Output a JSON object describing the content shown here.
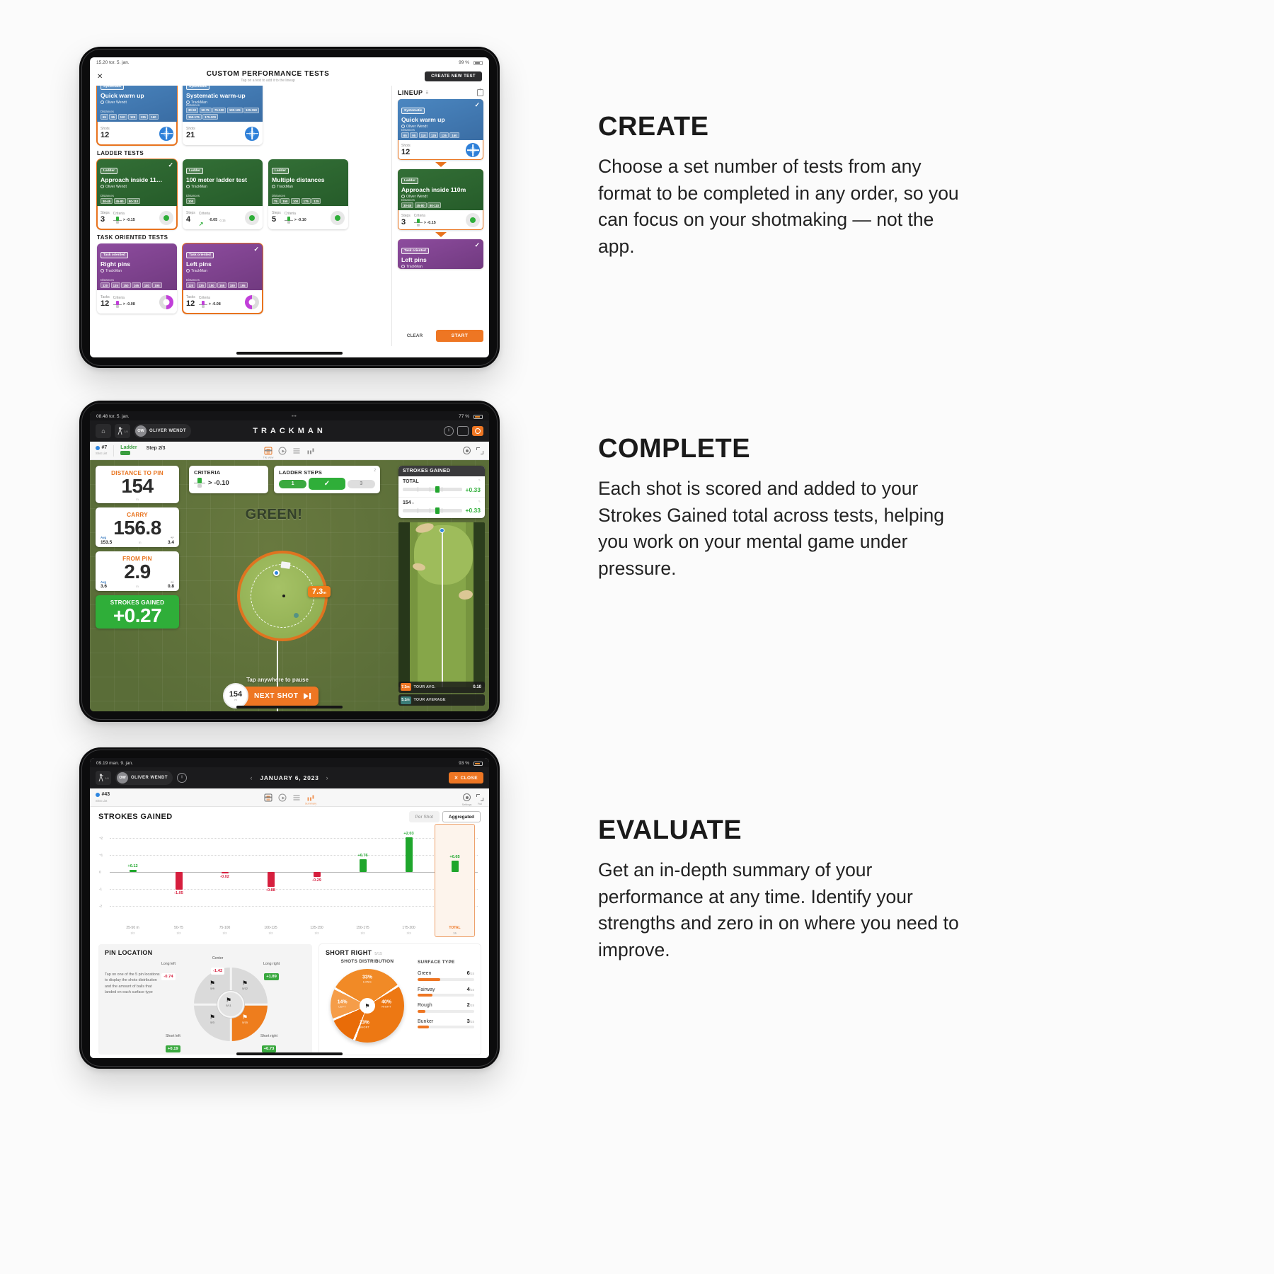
{
  "copy": {
    "create": {
      "title": "CREATE",
      "body": "Choose a set number of tests from any format to be completed in any order, so you can focus on your shotmaking — not the app."
    },
    "complete": {
      "title": "COMPLETE",
      "body": "Each shot is scored and added to your Strokes Gained total across tests, helping you work on your mental game under pressure."
    },
    "evaluate": {
      "title": "EVALUATE",
      "body": "Get an in-depth summary of your performance at any time. Identify your strengths and zero in on where you need to improve."
    }
  },
  "ipad_create": {
    "status": {
      "time": "15.20  tor. 5. jan.",
      "battery": "99 %"
    },
    "header": {
      "close": "✕",
      "title": "CUSTOM PERFORMANCE TESTS",
      "subtitle": "Tap on a test to add it to the lineup",
      "new_test": "CREATE NEW TEST"
    },
    "sections": {
      "ladder": "LADDER TESTS",
      "task": "TASK ORIENTED TESTS"
    },
    "labels": {
      "distances": "Distances",
      "shots": "Shots",
      "steps": "Steps",
      "tasks": "Tasks",
      "criteria": "Criteria"
    },
    "cards": [
      {
        "row": 0,
        "color": "blue",
        "icon": "bluetarget",
        "selected": true,
        "check": false,
        "badge": "Systematic",
        "title": "Quick warm up",
        "author": "Oliver Wendt",
        "distances": [
          "65",
          "95",
          "110",
          "125",
          "135",
          "160"
        ],
        "stat_label": "Shots",
        "stat_value": "12"
      },
      {
        "row": 0,
        "color": "blue",
        "icon": "bluetarget",
        "selected": false,
        "check": false,
        "badge": "Systematic",
        "title": "Systematic warm-up",
        "author": "TrackMan",
        "distances": [
          "30-50",
          "50-75",
          "75-100",
          "100-125",
          "125-150",
          "150-175",
          "175-200"
        ],
        "stat_label": "Shots",
        "stat_value": "21"
      },
      {
        "row": 1,
        "color": "green",
        "icon": "greendot",
        "selected": true,
        "check": true,
        "badge": "Ladder",
        "title": "Approach inside 11…",
        "author": "Oliver Wendt",
        "distances": [
          "30-45",
          "45-80",
          "80-110"
        ],
        "stat_label": "Steps",
        "stat_value": "3",
        "criteria": "> -0.15",
        "crit_type": "slider"
      },
      {
        "row": 1,
        "color": "green",
        "icon": "greendot",
        "selected": false,
        "check": false,
        "badge": "Ladder",
        "title": "100 meter ladder test",
        "author": "TrackMan",
        "distances": [
          "100"
        ],
        "stat_label": "Steps",
        "stat_value": "4",
        "criteria": "-0.05",
        "crit_sub": "-0.15",
        "crit_type": "trend"
      },
      {
        "row": 1,
        "color": "green",
        "icon": "greendot",
        "selected": false,
        "check": false,
        "badge": "Ladder",
        "title": "Multiple distances",
        "author": "TrackMan",
        "distances": [
          "75",
          "150",
          "100",
          "175",
          "125"
        ],
        "stat_label": "Steps",
        "stat_value": "5",
        "criteria": "> -0.10",
        "crit_type": "slider"
      },
      {
        "row": 2,
        "color": "purple",
        "icon": "donutR",
        "selected": false,
        "check": false,
        "badge": "Task oriented",
        "title": "Right pins",
        "author": "TrackMan",
        "distances": [
          "120",
          "135",
          "150",
          "165",
          "180",
          "195"
        ],
        "stat_label": "Tasks",
        "stat_value": "12",
        "criteria": "> -0.08",
        "crit_type": "slider-mag"
      },
      {
        "row": 2,
        "color": "purple",
        "icon": "donutL",
        "selected": true,
        "check": true,
        "badge": "Task oriented",
        "title": "Left pins",
        "author": "TrackMan",
        "distances": [
          "120",
          "135",
          "150",
          "165",
          "180",
          "195"
        ],
        "stat_label": "Tasks",
        "stat_value": "12",
        "criteria": "> -0.08",
        "crit_type": "slider-mag"
      }
    ],
    "lineup": {
      "title": "LINEUP",
      "clear": "CLEAR",
      "start": "START",
      "cards": [
        {
          "color": "blue",
          "icon": "bluetarget",
          "check": true,
          "badge": "Systematic",
          "title": "Quick warm up",
          "author": "Oliver Wendt",
          "distances": [
            "65",
            "95",
            "110",
            "125",
            "135",
            "160"
          ],
          "stat_label": "Shots",
          "stat_value": "12"
        },
        {
          "color": "green",
          "icon": "greendot",
          "check": false,
          "badge": "Ladder",
          "title": "Approach inside 110m",
          "author": "Oliver Wendt",
          "distances": [
            "30-45",
            "45-80",
            "80-110"
          ],
          "stat_label": "Steps",
          "stat_value": "3",
          "criteria": "> -0.15",
          "crit_type": "slider"
        },
        {
          "color": "purple",
          "icon": "donutL",
          "check": true,
          "badge": "Task oriented",
          "title": "Left pins",
          "author": "TrackMan",
          "distances": [],
          "stat_label": "",
          "stat_value": ""
        }
      ]
    }
  },
  "ipad_complete": {
    "status": {
      "time": "08.48  tor. 5. jan.",
      "battery": "77 %"
    },
    "header": {
      "user_initials": "OW",
      "user_name": "OLIVER WENDT",
      "logo": "TRACKMAN"
    },
    "toolbar": {
      "shot_no": "#7",
      "shot_list": "Shot List",
      "mode": "Ladder",
      "step": "Step 2/3",
      "tile_view": "Tile view"
    },
    "metrics": [
      {
        "label": "DISTANCE TO PIN",
        "value": "154",
        "unit": "m"
      },
      {
        "label": "CARRY",
        "value": "156.8",
        "unit": "m",
        "avg_label": "Avg",
        "avg": "153.5",
        "pm_label": "+/-",
        "pm": "3.4"
      },
      {
        "label": "FROM PIN",
        "value": "2.9",
        "unit": "m",
        "avg_label": "Avg",
        "avg": "3.6",
        "pm_label": "+/-",
        "pm": "0.8"
      },
      {
        "label": "STROKES GAINED",
        "value": "+0.27"
      }
    ],
    "criteria_card": {
      "title": "CRITERIA",
      "value": "> -0.10"
    },
    "ladder_card": {
      "title": "LADDER STEPS",
      "corner": "2",
      "steps": [
        "1",
        "✓",
        "3"
      ]
    },
    "result_text": "GREEN!",
    "distance_chip": {
      "value": "7.3",
      "unit": "m"
    },
    "pause_text": "Tap anywhere to pause",
    "next_shot": {
      "distance": "154",
      "unit": "m",
      "label": "NEXT SHOT"
    },
    "sg_panel": {
      "title": "STROKES GAINED",
      "rows": [
        {
          "label": "TOTAL",
          "unit": "",
          "value": "+0.33"
        },
        {
          "label": "154",
          "unit": "m",
          "value": "+0.33"
        }
      ]
    },
    "tour": [
      {
        "dist": "7.3m",
        "label": "TOUR AVG.",
        "value": "0.10"
      },
      {
        "dist": "5.1m",
        "label": "TOUR AVERAGE",
        "value": ""
      }
    ]
  },
  "ipad_evaluate": {
    "status": {
      "time": "09.19  man. 9. jan.",
      "battery": "93 %"
    },
    "header": {
      "user_initials": "OW",
      "user_name": "OLIVER WENDT",
      "date": "JANUARY 6, 2023",
      "close": "CLOSE"
    },
    "toolbar": {
      "shot_no": "#43",
      "shot_list": "Shot List",
      "summary": "Summary",
      "settings": "Settings",
      "full": "Full"
    },
    "title": "STROKES GAINED",
    "toggles": [
      "Per Shot",
      "Aggregated"
    ],
    "pin": {
      "title": "PIN LOCATION",
      "help": "Tap on one of the 5 pin locations to display the shots distribution and the amount of balls that landed on each surface type",
      "positions": [
        {
          "pos": "long-left",
          "label": "Long left",
          "value": "-0.74",
          "sign": "neg",
          "count": "5/9"
        },
        {
          "pos": "center",
          "label": "Center",
          "value": "-1.42",
          "sign": "neg",
          "count": "5/11"
        },
        {
          "pos": "long-right",
          "label": "Long right",
          "value": "+1.89",
          "sign": "pos",
          "count": "5/12"
        },
        {
          "pos": "short-left",
          "label": "Short left",
          "value": "+0.19",
          "sign": "pos",
          "count": "5/3"
        },
        {
          "pos": "short-right",
          "label": "Short right",
          "value": "+0.73",
          "sign": "pos",
          "count": "5/15"
        }
      ]
    },
    "short_right": {
      "title": "SHORT RIGHT",
      "count": "5/15",
      "dist_title": "SHOTS DISTRIBUTION",
      "surface_title": "SURFACE TYPE"
    }
  },
  "chart_data": [
    {
      "type": "bar",
      "title": "STROKES GAINED",
      "categories": [
        "25-50 m",
        "50-75",
        "75-100",
        "100-125",
        "125-150",
        "150-175",
        "175-200",
        "TOTAL"
      ],
      "values": [
        0.12,
        -1.05,
        -0.02,
        -0.88,
        -0.29,
        0.76,
        2.03,
        0.65
      ],
      "labels": [
        "+0.12",
        "-1.05",
        "-0.02",
        "-0.88",
        "-0.29",
        "+0.76",
        "+2.03",
        "+0.65"
      ],
      "counts": [
        "2/2",
        "2/2",
        "2/2",
        "2/2",
        "2/2",
        "2/2",
        "3/3",
        "15"
      ],
      "ylim": [
        -2.4,
        2.4
      ],
      "yticks": [
        {
          "v": 2,
          "label": "+2"
        },
        {
          "v": 1,
          "label": "+1"
        },
        {
          "v": 0,
          "label": "0"
        },
        {
          "v": -1,
          "label": "-1"
        },
        {
          "v": -2,
          "label": "-2"
        }
      ],
      "positive_color": "#1fa62c",
      "negative_color": "#d61f3e",
      "highlight_last": true
    },
    {
      "type": "pie",
      "title": "SHOTS DISTRIBUTION",
      "labels": [
        "LONG",
        "RIGHT",
        "SHORT",
        "LEFT"
      ],
      "values": [
        33,
        40,
        13,
        14
      ],
      "colors": [
        "#f18a26",
        "#ed7813",
        "#e96c08",
        "#f59d49"
      ]
    },
    {
      "type": "bar",
      "title": "SURFACE TYPE",
      "categories": [
        "Green",
        "Fairway",
        "Rough",
        "Bunker"
      ],
      "values": [
        6,
        4,
        2,
        3
      ],
      "total": 15
    }
  ]
}
